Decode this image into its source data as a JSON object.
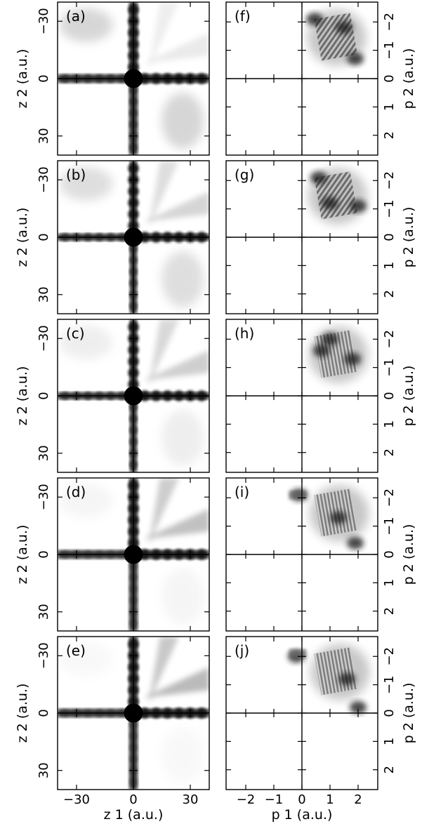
{
  "figure": {
    "left_column": {
      "panels": [
        "(a)",
        "(b)",
        "(c)",
        "(d)",
        "(e)"
      ],
      "ylabel": "z 2 (a.u.)",
      "xlabel": "z 1 (a.u.)",
      "y_ticks": [
        "30",
        "0",
        "−30"
      ],
      "x_ticks": [
        "−30",
        "0",
        "30"
      ]
    },
    "right_column": {
      "panels": [
        "(f)",
        "(g)",
        "(h)",
        "(i)",
        "(j)"
      ],
      "ylabel": "p 2 (a.u.)",
      "xlabel": "p 1 (a.u.)",
      "y_ticks": [
        "2",
        "1",
        "0",
        "−1",
        "−2"
      ],
      "x_ticks": [
        "−2",
        "−1",
        "0",
        "1",
        "2"
      ]
    }
  },
  "chart_data": [
    {
      "type": "heatmap",
      "description_key": "position-space density panels (a)-(e)",
      "xlim": [
        -40,
        40
      ],
      "ylim": [
        -40,
        40
      ],
      "xlabel": "z 1 (a.u.)",
      "ylabel": "z 2 (a.u.)",
      "x_ticks": [
        -30,
        0,
        30
      ],
      "y_ticks": [
        -30,
        0,
        30
      ],
      "panels": [
        "(a)",
        "(b)",
        "(c)",
        "(d)",
        "(e)"
      ],
      "colormap": "grayscale, dark = high density",
      "central_spot_radius": [
        5,
        5,
        5,
        5,
        5
      ]
    },
    {
      "type": "heatmap",
      "description_key": "momentum-space density panels (f)-(j)",
      "xlim": [
        -2.7,
        2.7
      ],
      "ylim": [
        -2.7,
        2.7
      ],
      "xlabel": "p 1 (a.u.)",
      "ylabel": "p 2 (a.u.)",
      "x_ticks": [
        -2,
        -1,
        0,
        1,
        2
      ],
      "y_ticks": [
        -2,
        -1,
        0,
        1,
        2
      ],
      "panels": [
        "(f)",
        "(g)",
        "(h)",
        "(i)",
        "(j)"
      ],
      "colormap": "grayscale, dark = high density",
      "occupied_quadrant": "p1 > 0, p2 > 0"
    }
  ]
}
